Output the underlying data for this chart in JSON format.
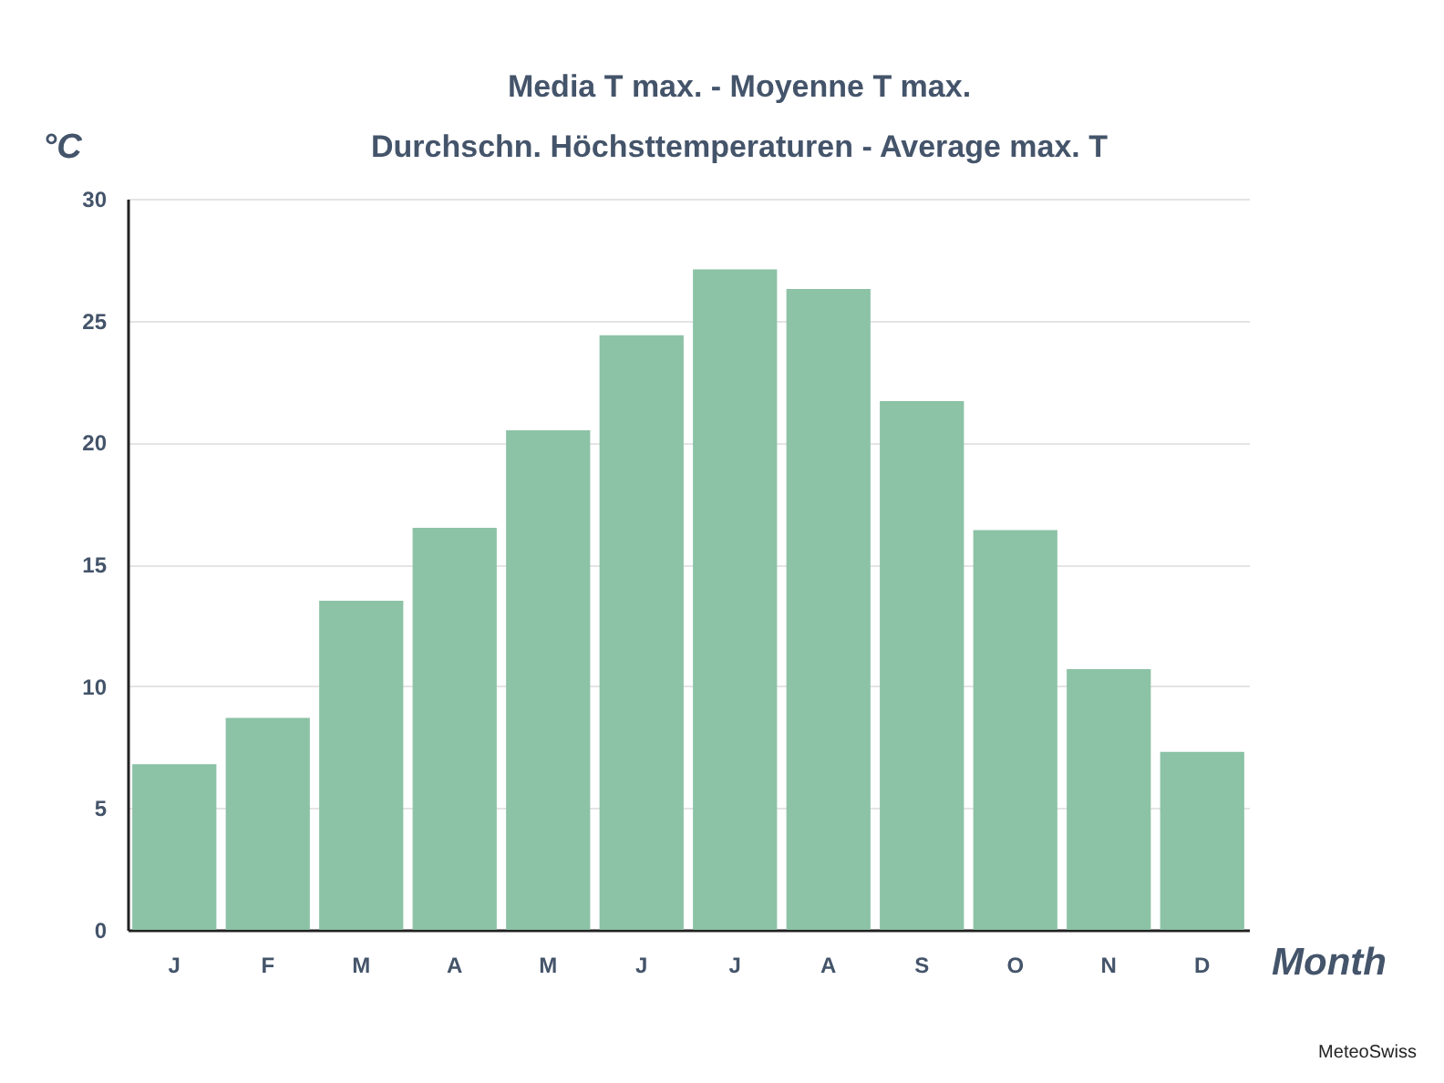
{
  "chart_data": {
    "type": "bar",
    "title": "Media T max. - Moyenne T max.\nDurchschn. Höchsttemperaturen  - Average max. T",
    "ylabel": "°C",
    "xlabel": "Month",
    "annotations": [
      "MeteoSwiss"
    ],
    "categories": [
      "J",
      "F",
      "M",
      "A",
      "M",
      "J",
      "J",
      "A",
      "S",
      "O",
      "N",
      "D"
    ],
    "values": [
      6.8,
      8.7,
      13.5,
      16.5,
      20.5,
      24.4,
      27.1,
      26.3,
      21.7,
      16.4,
      10.7,
      7.3
    ],
    "color": "#8cc2a6",
    "ylim": [
      0,
      30
    ],
    "yticks": [
      0,
      5,
      10,
      15,
      20,
      25,
      30
    ],
    "grid": "y"
  }
}
